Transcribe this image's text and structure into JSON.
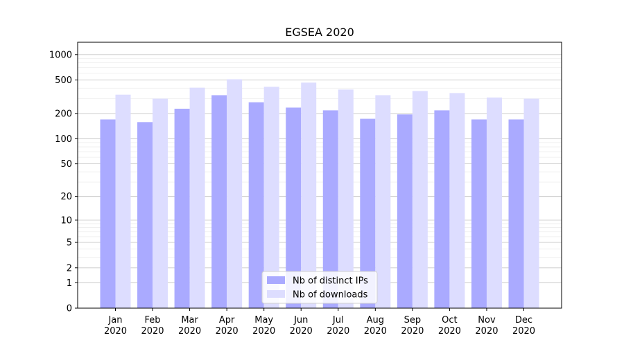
{
  "chart_data": {
    "type": "bar",
    "title": "EGSEA 2020",
    "xlabel": "",
    "ylabel": "",
    "y_scale": "log(1+y)",
    "ylim": [
      0,
      1400
    ],
    "y_ticks": [
      0,
      1,
      2,
      5,
      10,
      20,
      50,
      100,
      200,
      500,
      1000
    ],
    "grid": "horizontal",
    "legend_position": "bottom-center",
    "categories": [
      [
        "Jan",
        "2020"
      ],
      [
        "Feb",
        "2020"
      ],
      [
        "Mar",
        "2020"
      ],
      [
        "Apr",
        "2020"
      ],
      [
        "May",
        "2020"
      ],
      [
        "Jun",
        "2020"
      ],
      [
        "Jul",
        "2020"
      ],
      [
        "Aug",
        "2020"
      ],
      [
        "Sep",
        "2020"
      ],
      [
        "Oct",
        "2020"
      ],
      [
        "Nov",
        "2020"
      ],
      [
        "Dec",
        "2020"
      ]
    ],
    "series": [
      {
        "name": "Nb of distinct IPs",
        "color": "#aaaaff",
        "values": [
          170,
          158,
          228,
          330,
          272,
          235,
          218,
          173,
          195,
          218,
          170,
          170
        ]
      },
      {
        "name": "Nb of downloads",
        "color": "#ddddff",
        "values": [
          335,
          300,
          405,
          510,
          415,
          465,
          385,
          330,
          370,
          350,
          310,
          300
        ]
      }
    ]
  }
}
